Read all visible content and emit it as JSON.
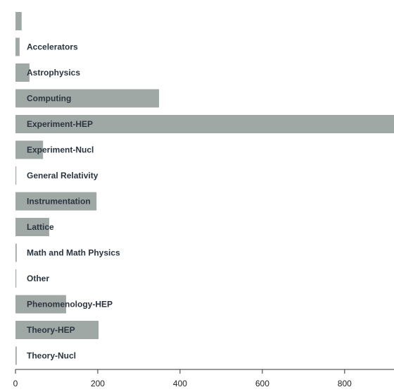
{
  "chart_data": {
    "type": "bar",
    "orientation": "horizontal",
    "categories": [
      null,
      "Accelerators",
      "Astrophysics",
      "Computing",
      "Experiment-HEP",
      "Experiment-Nucl",
      "General Relativity",
      "Instrumentation",
      "Lattice",
      "Math and Math Physics",
      "Other",
      "Phenomenology-HEP",
      "Theory-HEP",
      "Theory-Nucl"
    ],
    "values": [
      15,
      10,
      34,
      349,
      930,
      67,
      2,
      197,
      82,
      3,
      2,
      123,
      202,
      3
    ],
    "color": "#a0a8a6",
    "xlim": [
      0,
      920
    ],
    "xticks": [
      0,
      200,
      400,
      600,
      800
    ],
    "grid": false
  }
}
